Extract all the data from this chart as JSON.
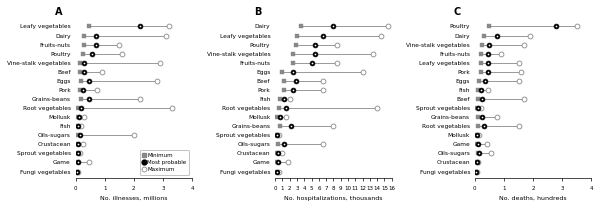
{
  "panel_A": {
    "title": "A",
    "xlabel": "No. illnesses, millions",
    "xlim": [
      0,
      4
    ],
    "xticks": [
      0,
      1,
      2,
      3,
      4
    ],
    "categories": [
      "Leafy vegetables",
      "Dairy",
      "Fruits-nuts",
      "Poultry",
      "Vine-stalk vegetables",
      "Beef",
      "Eggs",
      "Pork",
      "Grains-beans",
      "Root vegetables",
      "Mollusk",
      "Fish",
      "Oils-sugars",
      "Crustacean",
      "Sprout vegetables",
      "Game",
      "Fungi vegetables"
    ],
    "min_vals": [
      0.45,
      0.3,
      0.3,
      0.25,
      0.15,
      0.15,
      0.2,
      0.15,
      0.2,
      0.1,
      0.07,
      0.07,
      0.1,
      0.07,
      0.05,
      0.07,
      0.05
    ],
    "most_prob": [
      2.2,
      0.7,
      0.7,
      0.55,
      0.3,
      0.3,
      0.45,
      0.25,
      0.45,
      0.2,
      0.13,
      0.1,
      0.15,
      0.1,
      0.07,
      0.1,
      0.06
    ],
    "max_vals": [
      3.2,
      3.1,
      1.5,
      1.6,
      2.9,
      0.9,
      2.8,
      0.75,
      2.2,
      3.3,
      0.3,
      0.2,
      2.0,
      0.25,
      0.15,
      0.45,
      0.1
    ]
  },
  "panel_B": {
    "title": "B",
    "xlabel": "No. hospitalizations, thousands",
    "xlim": [
      0,
      16
    ],
    "xticks": [
      0,
      1,
      2,
      3,
      4,
      5,
      6,
      7,
      8,
      9,
      10,
      11,
      12,
      13,
      14,
      15,
      16
    ],
    "categories": [
      "Dairy",
      "Leafy vegetables",
      "Poultry",
      "Vine-stalk vegetables",
      "Fruits-nuts",
      "Eggs",
      "Beef",
      "Pork",
      "Fish",
      "Root vegetables",
      "Mollusk",
      "Grains-beans",
      "Sprout vegetables",
      "Oils-sugars",
      "Crustacean",
      "Game",
      "Fungi vegetables"
    ],
    "min_vals": [
      3.5,
      3.0,
      2.8,
      2.5,
      2.5,
      1.0,
      1.2,
      1.2,
      0.6,
      0.5,
      0.3,
      0.6,
      0.1,
      0.4,
      0.15,
      0.15,
      0.1
    ],
    "most_prob": [
      8.0,
      6.5,
      5.5,
      5.5,
      5.0,
      2.5,
      2.8,
      2.5,
      1.2,
      1.5,
      0.6,
      2.2,
      0.25,
      1.2,
      0.4,
      0.45,
      0.2
    ],
    "max_vals": [
      15.5,
      14.5,
      8.5,
      13.5,
      8.5,
      12.0,
      6.5,
      6.5,
      2.0,
      14.0,
      1.5,
      8.0,
      0.5,
      6.5,
      1.0,
      1.8,
      0.5
    ]
  },
  "panel_C": {
    "title": "C",
    "xlabel": "No. deaths, hundreds",
    "xlim": [
      0,
      4
    ],
    "xticks": [
      0,
      1,
      2,
      3,
      4
    ],
    "categories": [
      "Poultry",
      "Dairy",
      "Vine-stalk vegetables",
      "Fruits-nuts",
      "Leafy vegetables",
      "Pork",
      "Eggs",
      "Fish",
      "Beef",
      "Sprout vegetables",
      "Grains-beans",
      "Root vegetables",
      "Mollusk",
      "Game",
      "Oils-sugars",
      "Crustacean",
      "Fungi vegetables"
    ],
    "min_vals": [
      0.5,
      0.3,
      0.25,
      0.2,
      0.2,
      0.2,
      0.15,
      0.12,
      0.1,
      0.06,
      0.1,
      0.1,
      0.04,
      0.06,
      0.1,
      0.04,
      0.04
    ],
    "most_prob": [
      2.8,
      0.75,
      0.5,
      0.45,
      0.45,
      0.45,
      0.35,
      0.2,
      0.25,
      0.1,
      0.25,
      0.3,
      0.07,
      0.12,
      0.15,
      0.06,
      0.05
    ],
    "max_vals": [
      3.5,
      1.9,
      1.7,
      0.9,
      1.5,
      1.6,
      1.5,
      0.45,
      1.7,
      0.2,
      0.75,
      1.5,
      0.15,
      0.4,
      0.55,
      0.1,
      0.08
    ]
  },
  "legend": {
    "minimum_label": "Minimum",
    "most_probable_label": "Most probable",
    "maximum_label": "Maximum"
  },
  "line_color": "#888888",
  "markersize_min": 2.5,
  "markersize_mp": 3.5,
  "markersize_max": 3.5,
  "fontsize_label": 4.2,
  "fontsize_tick": 4.0,
  "fontsize_title": 7,
  "fontsize_legend": 4.0,
  "fontsize_xlabel": 4.5
}
